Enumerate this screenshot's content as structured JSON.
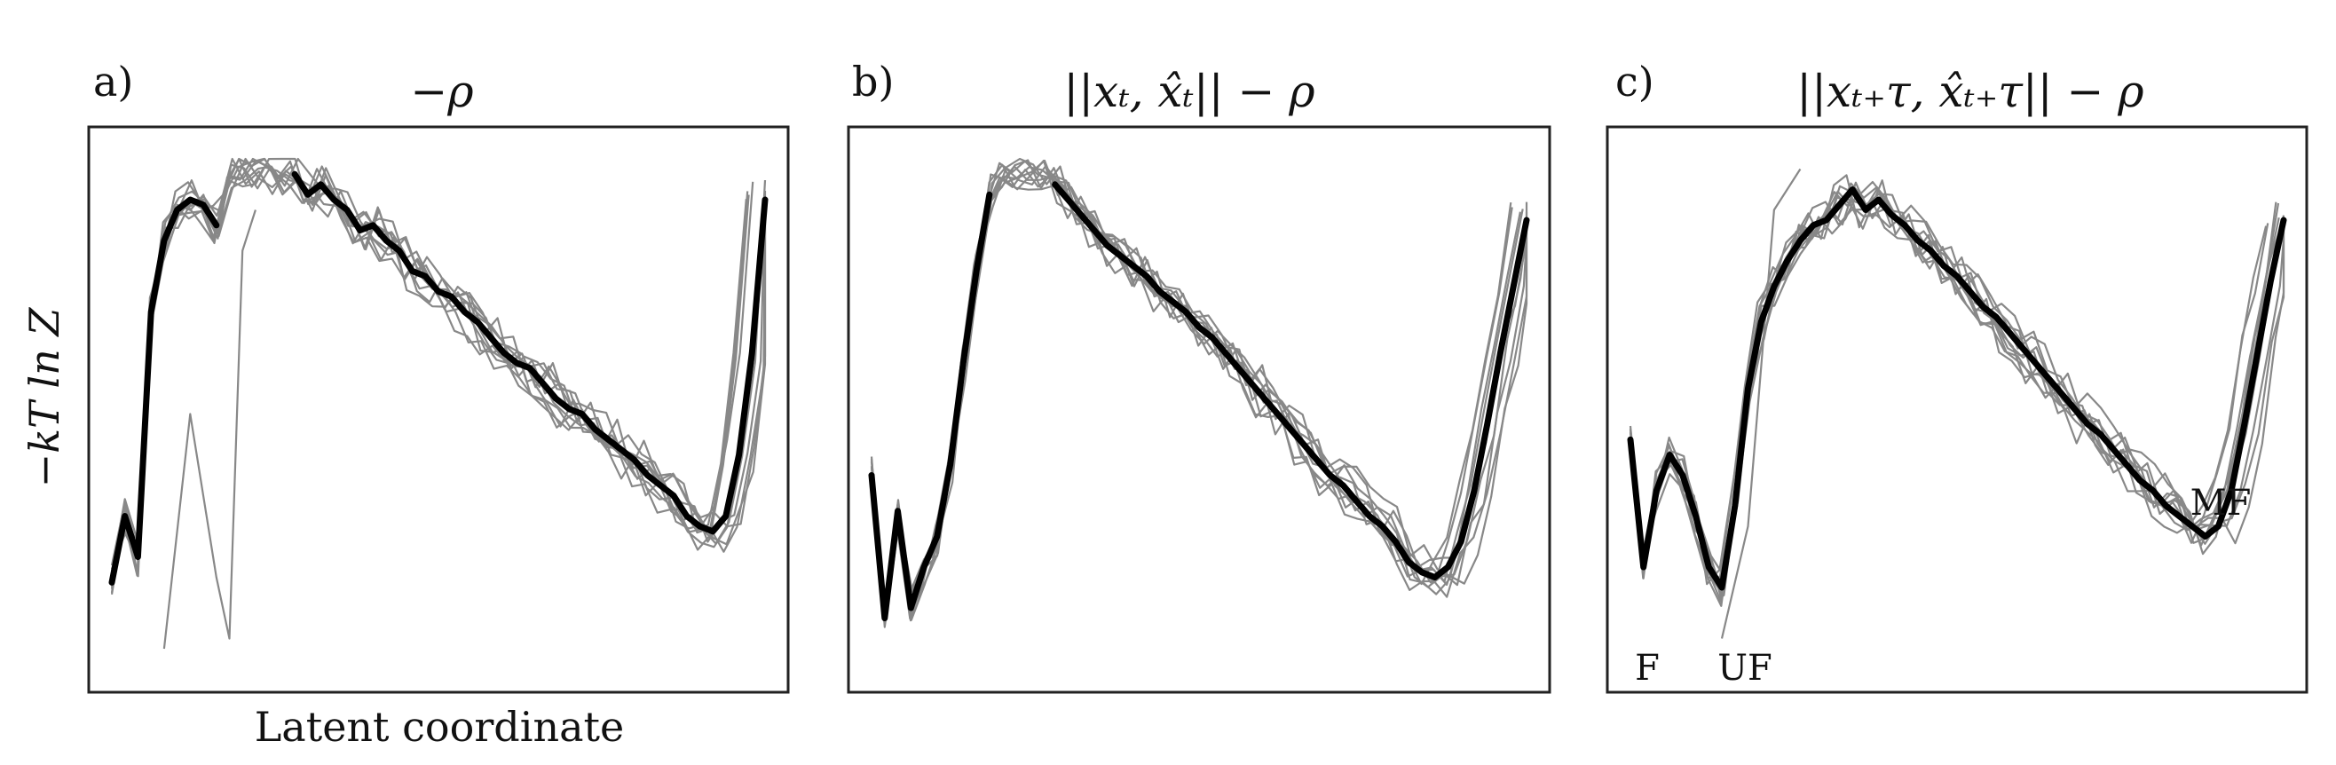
{
  "figure": {
    "ylabel": "−kT ln Z",
    "xlabel": "Latent coordinate"
  },
  "chart_data": [
    {
      "type": "line",
      "panel_label": "a)",
      "title": "−ρ",
      "ylabel": "−kT ln Z",
      "xlabel": "Latent coordinate",
      "xlim": [
        0,
        1
      ],
      "ylim": [
        0,
        1
      ],
      "x": [
        0,
        0.02,
        0.04,
        0.06,
        0.08,
        0.1,
        0.12,
        0.14,
        0.16,
        0.18,
        0.2,
        0.22,
        0.24,
        0.26,
        0.28,
        0.3,
        0.32,
        0.34,
        0.36,
        0.38,
        0.4,
        0.42,
        0.44,
        0.46,
        0.48,
        0.5,
        0.52,
        0.54,
        0.56,
        0.58,
        0.6,
        0.62,
        0.64,
        0.66,
        0.68,
        0.7,
        0.72,
        0.74,
        0.76,
        0.78,
        0.8,
        0.82,
        0.84,
        0.86,
        0.88,
        0.9,
        0.92,
        0.94,
        0.96,
        0.98,
        1
      ],
      "mean": [
        0.17,
        0.3,
        0.22,
        0.7,
        0.84,
        0.9,
        0.92,
        0.91,
        0.87,
        null,
        null,
        null,
        null,
        null,
        0.97,
        0.93,
        0.95,
        0.92,
        0.9,
        0.86,
        0.87,
        0.84,
        0.82,
        0.78,
        0.77,
        0.74,
        0.73,
        0.7,
        0.68,
        0.65,
        0.62,
        0.6,
        0.59,
        0.56,
        0.53,
        0.51,
        0.5,
        0.47,
        0.45,
        0.43,
        0.41,
        0.38,
        0.36,
        0.34,
        0.3,
        0.28,
        0.27,
        0.3,
        0.42,
        0.62,
        0.92
      ],
      "traces": 10,
      "extra": [
        {
          "mode": "rugged",
          "points": [
            [
              0.08,
              0.04
            ],
            [
              0.12,
              0.5
            ],
            [
              0.16,
              0.18
            ],
            [
              0.18,
              0.06
            ],
            [
              0.2,
              0.82
            ],
            [
              0.22,
              0.9
            ]
          ]
        }
      ]
    },
    {
      "type": "line",
      "panel_label": "b)",
      "title": "||xₜ, x̂ₜ|| − ρ",
      "xlim": [
        0,
        1
      ],
      "ylim": [
        0,
        1
      ],
      "x": [
        0,
        0.02,
        0.04,
        0.06,
        0.08,
        0.1,
        0.12,
        0.14,
        0.16,
        0.18,
        0.2,
        0.22,
        0.24,
        0.26,
        0.28,
        0.3,
        0.32,
        0.34,
        0.36,
        0.38,
        0.4,
        0.42,
        0.44,
        0.46,
        0.48,
        0.5,
        0.52,
        0.54,
        0.56,
        0.58,
        0.6,
        0.62,
        0.64,
        0.66,
        0.68,
        0.7,
        0.72,
        0.74,
        0.76,
        0.78,
        0.8,
        0.82,
        0.84,
        0.86,
        0.88,
        0.9,
        0.92,
        0.94,
        0.96,
        0.98,
        1
      ],
      "mean": [
        0.38,
        0.1,
        0.31,
        0.12,
        0.2,
        0.26,
        0.4,
        0.6,
        0.78,
        0.93,
        null,
        null,
        null,
        null,
        0.95,
        0.92,
        0.89,
        0.86,
        0.83,
        0.81,
        0.79,
        0.77,
        0.74,
        0.72,
        0.7,
        0.67,
        0.65,
        0.62,
        0.59,
        0.56,
        0.53,
        0.5,
        0.47,
        0.44,
        0.41,
        0.38,
        0.36,
        0.33,
        0.3,
        0.28,
        0.25,
        0.21,
        0.19,
        0.18,
        0.2,
        0.25,
        0.35,
        0.48,
        0.62,
        0.75,
        0.88
      ],
      "traces": 10,
      "extra": []
    },
    {
      "type": "line",
      "panel_label": "c)",
      "title": "||xₜ₊τ, x̂ₜ₊τ|| − ρ",
      "xlim": [
        0,
        1
      ],
      "ylim": [
        0,
        1
      ],
      "x": [
        0,
        0.02,
        0.04,
        0.06,
        0.08,
        0.1,
        0.12,
        0.14,
        0.16,
        0.18,
        0.2,
        0.22,
        0.24,
        0.26,
        0.28,
        0.3,
        0.32,
        0.34,
        0.36,
        0.38,
        0.4,
        0.42,
        0.44,
        0.46,
        0.48,
        0.5,
        0.52,
        0.54,
        0.56,
        0.58,
        0.6,
        0.62,
        0.64,
        0.66,
        0.68,
        0.7,
        0.72,
        0.74,
        0.76,
        0.78,
        0.8,
        0.82,
        0.84,
        0.86,
        0.88,
        0.9,
        0.92,
        0.94,
        0.96,
        0.98,
        1
      ],
      "mean": [
        0.45,
        0.2,
        0.35,
        0.42,
        0.38,
        0.3,
        0.2,
        0.16,
        0.32,
        0.55,
        0.68,
        0.75,
        0.8,
        0.84,
        0.87,
        0.88,
        0.91,
        0.94,
        0.9,
        0.92,
        0.89,
        0.87,
        0.84,
        0.82,
        0.79,
        0.77,
        0.74,
        0.71,
        0.69,
        0.66,
        0.63,
        0.6,
        0.57,
        0.54,
        0.51,
        0.48,
        0.46,
        0.43,
        0.4,
        0.37,
        0.35,
        0.32,
        0.3,
        0.28,
        0.26,
        0.28,
        0.35,
        0.48,
        0.62,
        0.76,
        0.88
      ],
      "traces": 10,
      "annotations": [
        {
          "text": "F"
        },
        {
          "text": "UF"
        },
        {
          "text": "MF"
        }
      ],
      "extra": [
        {
          "mode": "rugged",
          "points": [
            [
              0.14,
              0.06
            ],
            [
              0.18,
              0.28
            ],
            [
              0.22,
              0.9
            ],
            [
              0.26,
              0.98
            ]
          ]
        }
      ]
    }
  ]
}
